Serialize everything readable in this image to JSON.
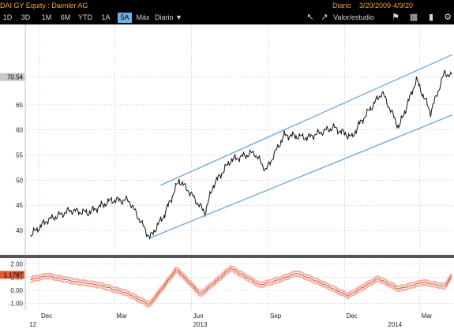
{
  "window": {
    "title": "DAI GY Equity : Daimler AG",
    "range_label": "Diario",
    "range": "3/20/2009-4/9/20"
  },
  "toolbar": {
    "periods": [
      {
        "label": "1D",
        "active": false
      },
      {
        "label": "3D",
        "active": false
      },
      {
        "label": "1M",
        "active": false
      },
      {
        "label": "6M",
        "active": false
      },
      {
        "label": "YTD",
        "active": false
      },
      {
        "label": "1A",
        "active": false
      },
      {
        "label": "5A",
        "active": true
      },
      {
        "label": "Máx",
        "active": false
      }
    ],
    "frequency": "Diario",
    "valor_label": "Valor/estudio",
    "icons": [
      "zoom-icon",
      "line-chart-icon",
      "flag-icon",
      "table-icon",
      "bar-chart-icon",
      "gear-icon"
    ]
  },
  "chart_data": [
    {
      "type": "line",
      "series": [
        {
          "x": [
            "2012-11-20",
            "2012-12-10",
            "2013-01-07",
            "2013-01-28",
            "2013-02-25",
            "2013-03-18",
            "2013-04-12",
            "2013-04-29",
            "2013-05-17",
            "2013-05-28",
            "2013-06-17",
            "2013-06-27",
            "2013-07-18",
            "2013-08-15",
            "2013-08-29",
            "2013-09-20",
            "2013-10-18",
            "2013-11-18",
            "2013-12-10",
            "2013-12-18",
            "2014-01-15",
            "2014-02-04",
            "2014-02-25",
            "2014-03-14",
            "2014-03-31",
            "2014-04-08"
          ],
          "values": [
            39,
            42,
            44,
            43.5,
            46,
            46,
            38.5,
            43,
            50,
            48,
            43.5,
            49,
            54,
            55.5,
            52,
            59,
            58.5,
            60.5,
            58.5,
            61,
            67.5,
            60.5,
            70,
            63.5,
            71.5,
            70.6
          ]
        }
      ],
      "annotations": [
        {
          "label": "70.54",
          "y": 70.54
        }
      ],
      "trend_channel": {
        "upper": [
          {
            "x": "2013-04-25",
            "y": 49
          },
          {
            "x": "2014-04-09",
            "y": 75
          }
        ],
        "lower": [
          {
            "x": "2013-04-12",
            "y": 38.5
          },
          {
            "x": "2014-04-09",
            "y": 63
          }
        ]
      },
      "ylim": [
        35.3,
        81
      ],
      "yticks": [
        40,
        45,
        50,
        55,
        60,
        65,
        70.54
      ],
      "grid": true
    },
    {
      "type": "line",
      "series": [
        {
          "x": [
            "2012-11-20",
            "2012-12-10",
            "2013-01-10",
            "2013-02-12",
            "2013-03-15",
            "2013-04-12",
            "2013-05-14",
            "2013-06-12",
            "2013-07-18",
            "2013-08-22",
            "2013-09-14",
            "2013-10-05",
            "2013-11-05",
            "2013-12-05",
            "2014-01-10",
            "2014-02-04",
            "2014-03-05",
            "2014-03-31",
            "2014-04-09"
          ],
          "values": [
            0.8,
            1.1,
            0.7,
            0.4,
            -0.2,
            -1.1,
            1.6,
            -0.3,
            1.7,
            0.4,
            0.8,
            1.3,
            0.5,
            -0.4,
            0.9,
            0.1,
            0.6,
            0.3,
            1.18
          ]
        }
      ],
      "annotations": [
        {
          "label": "1.1787",
          "y": 1.1787
        }
      ],
      "ylim": [
        -1.5,
        2.4
      ],
      "yticks": [
        2.0,
        1.0,
        0.0,
        -1.0
      ],
      "tick_labels": [
        "2.00",
        "1.00",
        "0.00",
        "-1.00"
      ],
      "grid": true
    }
  ],
  "x_axis": {
    "ticks": [
      {
        "label": "Dec",
        "x": "2012-12-01"
      },
      {
        "label": "Mar",
        "x": "2013-03-01"
      },
      {
        "label": "Jun",
        "x": "2013-06-01"
      },
      {
        "label": "Sep",
        "x": "2013-09-01"
      },
      {
        "label": "Dec",
        "x": "2013-12-01"
      },
      {
        "label": "Mar",
        "x": "2014-03-01"
      }
    ],
    "year_labels": [
      {
        "label": "12",
        "x": "2012-11-17"
      },
      {
        "label": "2013",
        "x": "2013-06-01"
      },
      {
        "label": "2014",
        "x": "2014-01-20"
      }
    ],
    "range": [
      "2012-11-14",
      "2014-04-11"
    ]
  },
  "colors": {
    "background": "#ffffff",
    "bar": "#000000",
    "title": "#f2a61f",
    "price": "#111111",
    "channel": "#6fa6e0",
    "grid": "#c6c6c6",
    "osc_main": "#d9533a",
    "osc_band": "#f3b0a2",
    "active_button": "#6fb2e6",
    "last_price_tag": "#c8c8c8",
    "osc_tag": "#e25b35"
  }
}
